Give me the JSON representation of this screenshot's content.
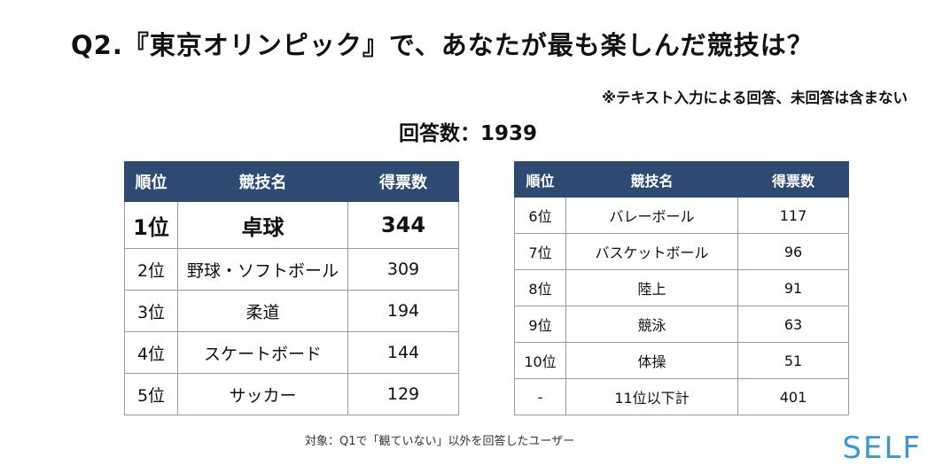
{
  "title": "Q2.『東京オリンピック』で、あなたが最も楽しんだ競技は？",
  "note": "※テキスト入力による回答、未回答は含まない",
  "response_count": "回答数：1939",
  "footer": "対象：Q1で「観ていない」以外を回答したユーザー",
  "logo": "SELF",
  "colors": {
    "header_bg": "#2e4a72",
    "logo": "#3a97d4"
  },
  "chart_data": {
    "type": "table",
    "columns": [
      "順位",
      "競技名",
      "得票数"
    ],
    "rows": [
      [
        "1位",
        "卓球",
        "344"
      ],
      [
        "2位",
        "野球・ソフトボール",
        "309"
      ],
      [
        "3位",
        "柔道",
        "194"
      ],
      [
        "4位",
        "スケートボード",
        "144"
      ],
      [
        "5位",
        "サッカー",
        "129"
      ],
      [
        "6位",
        "バレーボール",
        "117"
      ],
      [
        "7位",
        "バスケットボール",
        "96"
      ],
      [
        "8位",
        "陸上",
        "91"
      ],
      [
        "9位",
        "競泳",
        "63"
      ],
      [
        "10位",
        "体操",
        "51"
      ],
      [
        "-",
        "11位以下計",
        "401"
      ]
    ]
  }
}
